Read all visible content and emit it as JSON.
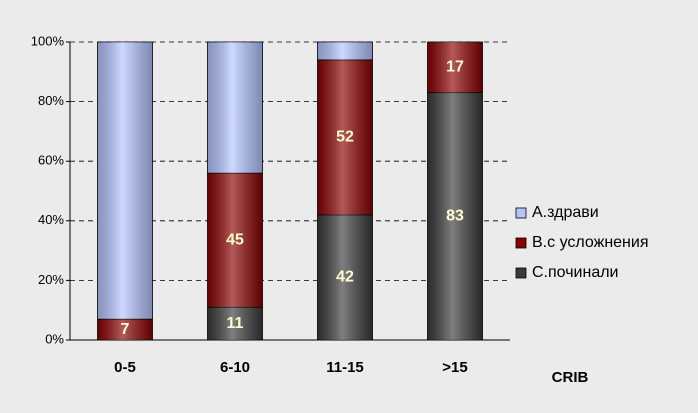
{
  "chart_data": {
    "type": "stacked_bar_percent",
    "categories": [
      "0-5",
      "6-10",
      "11-15",
      ">15"
    ],
    "x_label": "CRIB",
    "series": [
      {
        "name": "С.починали",
        "color": "#3a3a3a",
        "values": [
          0,
          11,
          42,
          83
        ],
        "show_labels": true
      },
      {
        "name": "В.с усложнения",
        "color": "#8b0000",
        "values": [
          7,
          45,
          52,
          17
        ],
        "show_labels": true
      },
      {
        "name": "А.здрави",
        "color": "#b4c4ff",
        "values": [
          93,
          44,
          6,
          0
        ],
        "show_labels": false
      }
    ],
    "ylim": [
      0,
      100
    ],
    "yticks": [
      {
        "value": 0,
        "label": "0%"
      },
      {
        "value": 20,
        "label": "20%"
      },
      {
        "value": 40,
        "label": "40%"
      },
      {
        "value": 60,
        "label": "60%"
      },
      {
        "value": 80,
        "label": "80%"
      },
      {
        "value": 100,
        "label": "100%"
      }
    ],
    "grid": true,
    "legend": "right"
  }
}
